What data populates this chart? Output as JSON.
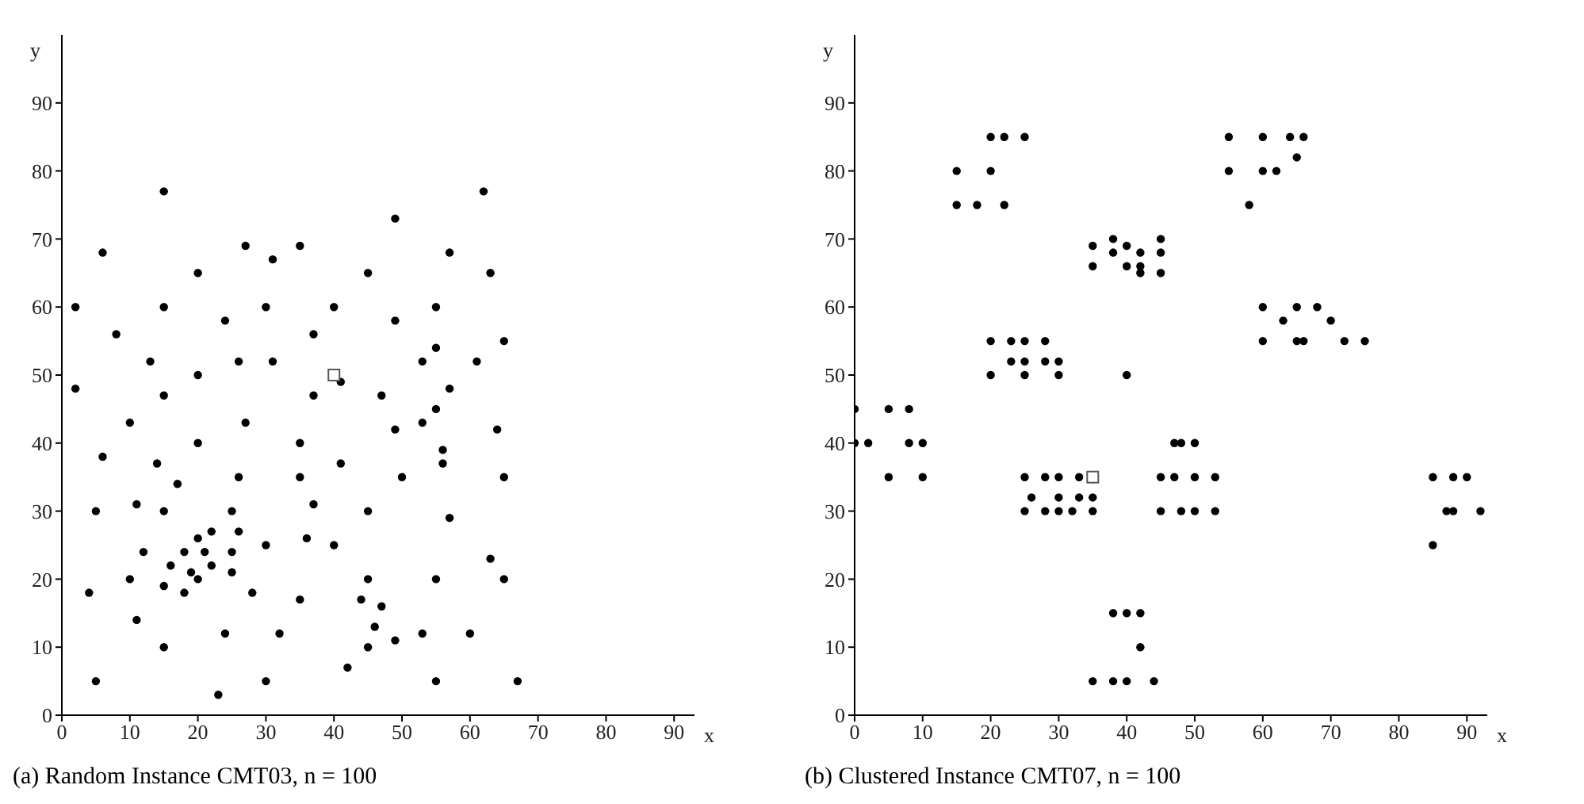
{
  "chart_data": [
    {
      "type": "scatter",
      "title": "(a) Random Instance CMT03, n = 100",
      "xlabel": "x",
      "ylabel": "y",
      "xlim": [
        0,
        93
      ],
      "ylim": [
        0,
        100
      ],
      "xticks": [
        0,
        10,
        20,
        30,
        40,
        50,
        60,
        70,
        80,
        90
      ],
      "yticks": [
        0,
        10,
        20,
        30,
        40,
        50,
        60,
        70,
        80,
        90
      ],
      "grid": false,
      "legend": false,
      "series": [
        {
          "color": "#000000",
          "marker": "circle",
          "x": [
            15,
            62,
            49,
            6,
            27,
            35,
            31,
            57,
            20,
            45,
            63,
            2,
            15,
            30,
            40,
            55,
            8,
            37,
            24,
            49,
            65,
            55,
            13,
            26,
            31,
            53,
            61,
            2,
            20,
            15,
            37,
            41,
            47,
            57,
            55,
            10,
            27,
            49,
            53,
            64,
            6,
            20,
            14,
            17,
            26,
            35,
            35,
            41,
            50,
            56,
            56,
            65,
            5,
            11,
            15,
            25,
            37,
            45,
            57,
            20,
            22,
            26,
            36,
            30,
            40,
            12,
            18,
            21,
            25,
            16,
            22,
            19,
            25,
            10,
            20,
            45,
            55,
            65,
            63,
            4,
            15,
            18,
            28,
            35,
            44,
            47,
            11,
            46,
            24,
            32,
            53,
            60,
            49,
            15,
            45,
            42,
            5,
            30,
            55,
            67,
            23
          ],
          "values": [
            77,
            77,
            73,
            68,
            69,
            69,
            67,
            68,
            65,
            65,
            65,
            60,
            60,
            60,
            60,
            60,
            56,
            56,
            58,
            58,
            55,
            54,
            52,
            52,
            52,
            52,
            52,
            48,
            50,
            47,
            47,
            49,
            47,
            48,
            45,
            43,
            43,
            42,
            43,
            42,
            38,
            40,
            37,
            34,
            35,
            40,
            35,
            37,
            35,
            39,
            37,
            35,
            30,
            31,
            30,
            30,
            31,
            30,
            29,
            26,
            27,
            27,
            26,
            25,
            25,
            24,
            24,
            24,
            24,
            22,
            22,
            21,
            21,
            20,
            20,
            20,
            20,
            20,
            23,
            18,
            19,
            18,
            18,
            17,
            17,
            16,
            14,
            13,
            12,
            12,
            12,
            12,
            11,
            10,
            10,
            7,
            5,
            5,
            5,
            5,
            3
          ]
        },
        {
          "color": "#555555",
          "marker": "square",
          "x": [
            40
          ],
          "values": [
            50
          ]
        }
      ]
    },
    {
      "type": "scatter",
      "title": "(b) Clustered Instance CMT07, n = 100",
      "xlabel": "x",
      "ylabel": "y",
      "xlim": [
        0,
        93
      ],
      "ylim": [
        0,
        100
      ],
      "xticks": [
        0,
        10,
        20,
        30,
        40,
        50,
        60,
        70,
        80,
        90
      ],
      "yticks": [
        0,
        10,
        20,
        30,
        40,
        50,
        60,
        70,
        80,
        90
      ],
      "grid": false,
      "legend": false,
      "series": [
        {
          "color": "#000000",
          "marker": "circle",
          "x": [
            20,
            22,
            25,
            55,
            60,
            64,
            66,
            65,
            15,
            20,
            55,
            60,
            62,
            15,
            18,
            22,
            58,
            38,
            45,
            35,
            40,
            38,
            42,
            45,
            35,
            40,
            42,
            42,
            45,
            60,
            65,
            68,
            63,
            70,
            20,
            23,
            25,
            28,
            60,
            65,
            66,
            72,
            75,
            23,
            25,
            28,
            30,
            20,
            25,
            30,
            40,
            0,
            5,
            8,
            0,
            2,
            8,
            10,
            47,
            48,
            50,
            5,
            10,
            25,
            28,
            30,
            33,
            45,
            47,
            50,
            53,
            85,
            88,
            90,
            26,
            30,
            33,
            35,
            25,
            28,
            30,
            32,
            35,
            45,
            48,
            50,
            53,
            87,
            88,
            92,
            85,
            38,
            40,
            42,
            42,
            35,
            38,
            40,
            44
          ],
          "values": [
            85,
            85,
            85,
            85,
            85,
            85,
            85,
            82,
            80,
            80,
            80,
            80,
            80,
            75,
            75,
            75,
            75,
            70,
            70,
            69,
            69,
            68,
            68,
            68,
            66,
            66,
            66,
            65,
            65,
            60,
            60,
            60,
            58,
            58,
            55,
            55,
            55,
            55,
            55,
            55,
            55,
            55,
            55,
            52,
            52,
            52,
            52,
            50,
            50,
            50,
            50,
            45,
            45,
            45,
            40,
            40,
            40,
            40,
            40,
            40,
            40,
            35,
            35,
            35,
            35,
            35,
            35,
            35,
            35,
            35,
            35,
            35,
            35,
            35,
            32,
            32,
            32,
            32,
            30,
            30,
            30,
            30,
            30,
            30,
            30,
            30,
            30,
            30,
            30,
            30,
            25,
            15,
            15,
            15,
            10,
            5,
            5,
            5,
            5
          ]
        },
        {
          "color": "#555555",
          "marker": "square",
          "x": [
            35
          ],
          "values": [
            35
          ]
        }
      ]
    }
  ]
}
